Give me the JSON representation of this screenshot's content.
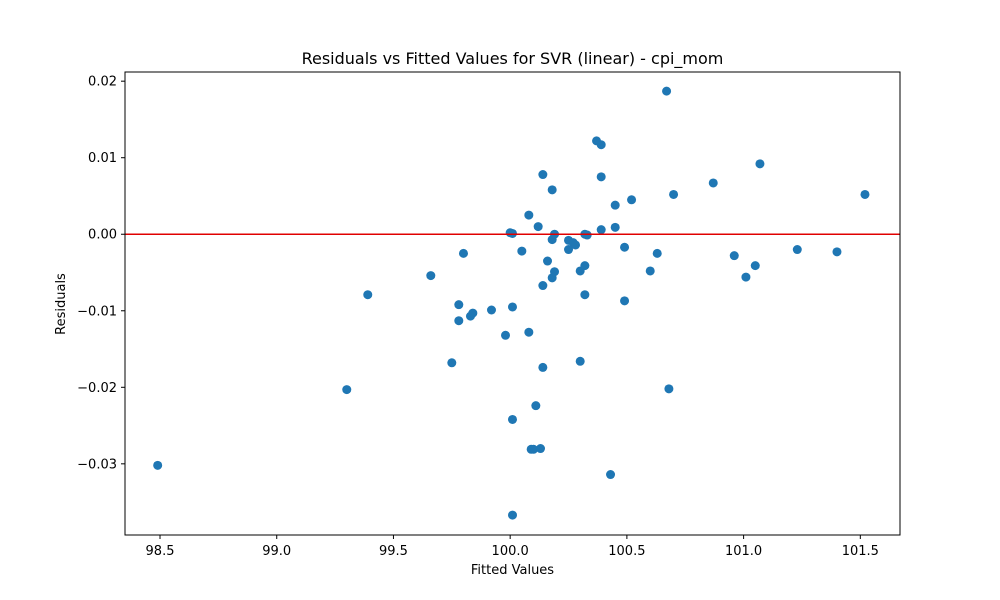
{
  "chart_data": {
    "type": "scatter",
    "title": "Residuals vs Fitted Values for SVR (linear) - cpi_mom",
    "xlabel": "Fitted Values",
    "ylabel": "Residuals",
    "xlim": [
      98.35,
      101.67
    ],
    "ylim": [
      -0.0393,
      0.0212
    ],
    "xticks": [
      98.5,
      99.0,
      99.5,
      100.0,
      100.5,
      101.0,
      101.5
    ],
    "xtick_labels": [
      "98.5",
      "99.0",
      "99.5",
      "100.0",
      "100.5",
      "101.0",
      "101.5"
    ],
    "yticks": [
      -0.03,
      -0.02,
      -0.01,
      0.0,
      0.01,
      0.02
    ],
    "ytick_labels": [
      "−0.03",
      "−0.02",
      "−0.01",
      "0.00",
      "0.01",
      "0.02"
    ],
    "grid": false,
    "reference_line": {
      "y": 0.0,
      "color": "#e00000"
    },
    "marker_color": "#1f77b4",
    "points": [
      [
        98.49,
        -0.0302
      ],
      [
        99.3,
        -0.0203
      ],
      [
        99.39,
        -0.0079
      ],
      [
        99.66,
        -0.0054
      ],
      [
        99.75,
        -0.0168
      ],
      [
        99.78,
        -0.0092
      ],
      [
        99.78,
        -0.0113
      ],
      [
        99.8,
        -0.0025
      ],
      [
        99.83,
        -0.0107
      ],
      [
        99.84,
        -0.0103
      ],
      [
        99.92,
        -0.0099
      ],
      [
        99.98,
        -0.0132
      ],
      [
        100.0,
        0.0002
      ],
      [
        100.01,
        0.0001
      ],
      [
        100.01,
        -0.0095
      ],
      [
        100.01,
        -0.0242
      ],
      [
        100.01,
        -0.0367
      ],
      [
        100.05,
        -0.0022
      ],
      [
        100.08,
        0.0025
      ],
      [
        100.08,
        -0.0128
      ],
      [
        100.09,
        -0.0281
      ],
      [
        100.1,
        -0.0281
      ],
      [
        100.11,
        -0.0224
      ],
      [
        100.12,
        0.001
      ],
      [
        100.13,
        -0.028
      ],
      [
        100.14,
        0.0078
      ],
      [
        100.14,
        -0.0067
      ],
      [
        100.14,
        -0.0174
      ],
      [
        100.16,
        -0.0035
      ],
      [
        100.18,
        0.0058
      ],
      [
        100.18,
        -0.0007
      ],
      [
        100.18,
        -0.0057
      ],
      [
        100.19,
        0.0
      ],
      [
        100.19,
        -0.0049
      ],
      [
        100.25,
        -0.0008
      ],
      [
        100.25,
        -0.002
      ],
      [
        100.27,
        -0.0011
      ],
      [
        100.28,
        -0.0014
      ],
      [
        100.3,
        -0.0048
      ],
      [
        100.3,
        -0.0166
      ],
      [
        100.32,
        0.0
      ],
      [
        100.32,
        -0.0041
      ],
      [
        100.32,
        -0.0079
      ],
      [
        100.33,
        -0.0001
      ],
      [
        100.37,
        0.0122
      ],
      [
        100.39,
        0.0117
      ],
      [
        100.39,
        0.0075
      ],
      [
        100.39,
        0.0006
      ],
      [
        100.43,
        -0.0314
      ],
      [
        100.45,
        0.0038
      ],
      [
        100.45,
        0.0009
      ],
      [
        100.49,
        -0.0017
      ],
      [
        100.49,
        -0.0087
      ],
      [
        100.52,
        0.0045
      ],
      [
        100.6,
        -0.0048
      ],
      [
        100.63,
        -0.0025
      ],
      [
        100.67,
        0.0187
      ],
      [
        100.68,
        -0.0202
      ],
      [
        100.7,
        0.0052
      ],
      [
        100.87,
        0.0067
      ],
      [
        100.96,
        -0.0028
      ],
      [
        101.01,
        -0.0056
      ],
      [
        101.05,
        -0.0041
      ],
      [
        101.07,
        0.0092
      ],
      [
        101.23,
        -0.002
      ],
      [
        101.4,
        -0.0023
      ],
      [
        101.52,
        0.0052
      ]
    ]
  }
}
